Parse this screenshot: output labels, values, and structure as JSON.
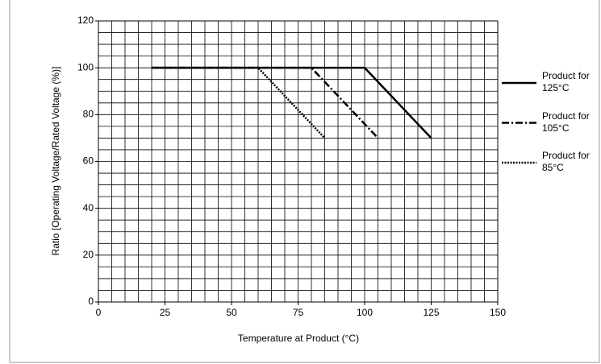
{
  "chart_data": {
    "type": "line",
    "xlabel": "Temperature at Product (°C)",
    "ylabel": "Ratio [Operating Voltage/Rated Voltage (%)]",
    "xlim": [
      0,
      150
    ],
    "xticks": [
      0,
      25,
      50,
      75,
      100,
      125,
      150
    ],
    "ylim": [
      0,
      120
    ],
    "yticks": [
      0,
      20,
      40,
      60,
      80,
      100,
      120
    ],
    "grid": true,
    "minor_grid": {
      "x": 5,
      "y": 5
    },
    "legend": "right",
    "series": [
      {
        "name": "Product for 125°C",
        "color": "#000000",
        "style": "solid",
        "x": [
          20,
          100,
          125
        ],
        "values": [
          100,
          100,
          70
        ]
      },
      {
        "name": "Product for 105°C",
        "color": "#000000",
        "style": "dashdot",
        "x": [
          20,
          80,
          105
        ],
        "values": [
          100,
          100,
          70
        ]
      },
      {
        "name": "Product for 85°C",
        "color": "#000000",
        "style": "dotted",
        "x": [
          20,
          60,
          85
        ],
        "values": [
          100,
          100,
          70
        ]
      }
    ]
  }
}
